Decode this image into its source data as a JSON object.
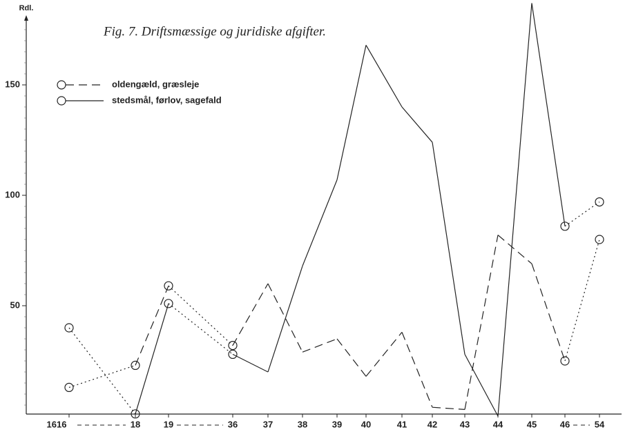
{
  "chart_data": {
    "type": "line",
    "title": "Fig. 7. Driftsmæssige og juridiske afgifter.",
    "y_label": "Rdl.",
    "categories": [
      "1616",
      "18",
      "19",
      "36",
      "37",
      "38",
      "39",
      "40",
      "41",
      "42",
      "43",
      "44",
      "45",
      "46",
      "54"
    ],
    "series": [
      {
        "name": "oldengæld, græsleje",
        "color": "#222222",
        "style": "dashed",
        "values": [
          13,
          23,
          59,
          32,
          60,
          29,
          35,
          18,
          38,
          4,
          3,
          82,
          69,
          25,
          80
        ]
      },
      {
        "name": "stedsmål, førlov, sagefald",
        "color": "#222222",
        "style": "solid",
        "values": [
          40,
          1,
          51,
          28,
          20,
          68,
          107,
          168,
          140,
          124,
          28,
          0,
          187,
          86,
          97
        ]
      }
    ],
    "ylim": [
      0,
      180
    ],
    "yticks": [
      50,
      100,
      150
    ]
  }
}
